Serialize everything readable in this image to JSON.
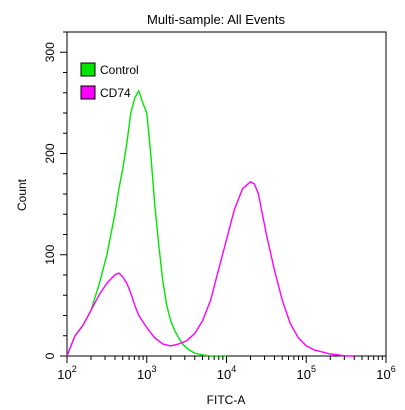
{
  "chart_data": {
    "type": "line",
    "title": "Multi-sample: All Events",
    "xlabel": "FITC-A",
    "ylabel": "Count",
    "x_scale": "log",
    "xlim": [
      100,
      1000000
    ],
    "ylim": [
      0,
      320
    ],
    "x_ticks": [
      {
        "value": 100,
        "base": "10",
        "exp": "2"
      },
      {
        "value": 1000,
        "base": "10",
        "exp": "3"
      },
      {
        "value": 10000,
        "base": "10",
        "exp": "4"
      },
      {
        "value": 100000,
        "base": "10",
        "exp": "5"
      },
      {
        "value": 1000000,
        "base": "10",
        "exp": "6"
      }
    ],
    "y_ticks": [
      {
        "value": 0,
        "label": "0"
      },
      {
        "value": 100,
        "label": "100"
      },
      {
        "value": 200,
        "label": "200"
      },
      {
        "value": 300,
        "label": "300"
      }
    ],
    "grid": false,
    "legend": "top-left",
    "series": [
      {
        "name": "Control",
        "color": "#00e600",
        "x": [
          100,
          126,
          158,
          200,
          251,
          316,
          398,
          447,
          501,
          562,
          631,
          708,
          794,
          891,
          1000,
          1122,
          1259,
          1413,
          1585,
          1778,
          1995,
          2239,
          2512,
          2818,
          3162,
          3548,
          3981,
          4467,
          5012,
          6310,
          7943,
          10000
        ],
        "y": [
          0,
          20,
          30,
          45,
          70,
          100,
          140,
          165,
          185,
          210,
          240,
          255,
          262,
          250,
          240,
          200,
          150,
          110,
          75,
          50,
          35,
          25,
          18,
          12,
          8,
          5,
          3,
          2,
          1,
          0,
          0,
          0
        ]
      },
      {
        "name": "CD74",
        "color": "#ff00ff",
        "x": [
          100,
          126,
          158,
          200,
          251,
          316,
          398,
          447,
          501,
          562,
          631,
          708,
          794,
          1000,
          1259,
          1585,
          1995,
          2512,
          3162,
          3981,
          5012,
          6310,
          7943,
          10000,
          12589,
          15849,
          19953,
          22387,
          25119,
          28184,
          31623,
          39811,
          50119,
          63096,
          79433,
          100000,
          125893,
          158489,
          199526,
          251189,
          316228,
          398107
        ],
        "y": [
          0,
          20,
          30,
          45,
          60,
          72,
          80,
          82,
          78,
          72,
          62,
          50,
          40,
          28,
          18,
          12,
          10,
          12,
          15,
          22,
          35,
          55,
          85,
          115,
          145,
          165,
          172,
          170,
          160,
          140,
          120,
          85,
          55,
          32,
          18,
          10,
          6,
          4,
          2,
          1,
          0,
          0
        ]
      }
    ]
  }
}
